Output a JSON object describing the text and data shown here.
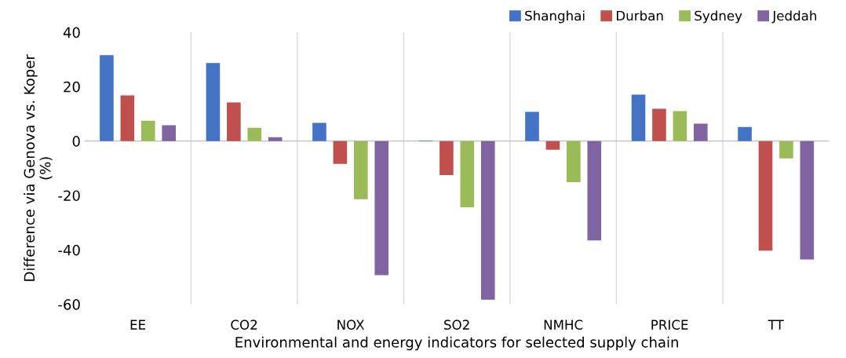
{
  "chart_data": {
    "type": "bar",
    "xlabel": "Environmental and energy indicators for selected supply chain",
    "ylabel": "Difference via Genova vs. Koper\n(%)",
    "categories": [
      "EE",
      "CO2",
      "NOX",
      "SO2",
      "NMHC",
      "PRICE",
      "TT"
    ],
    "series": [
      {
        "name": "Shanghai",
        "color": "#4472c4",
        "values": [
          31.6,
          28.7,
          6.7,
          0.2,
          10.7,
          17.1,
          5.2
        ]
      },
      {
        "name": "Durban",
        "color": "#c0504d",
        "values": [
          16.8,
          14.2,
          -8.4,
          -12.5,
          -3.2,
          11.9,
          -40.3
        ]
      },
      {
        "name": "Sydney",
        "color": "#9bbb59",
        "values": [
          7.5,
          4.9,
          -21.4,
          -24.3,
          -15.1,
          11.0,
          -6.4
        ]
      },
      {
        "name": "Jeddah",
        "color": "#8064a2",
        "values": [
          5.8,
          1.4,
          -49.3,
          -58.3,
          -36.5,
          6.4,
          -43.5
        ]
      }
    ],
    "ylim": [
      -60,
      40
    ],
    "yticks": [
      -60,
      -40,
      -20,
      0,
      20,
      40
    ],
    "grid": "x",
    "legend": "top right"
  }
}
